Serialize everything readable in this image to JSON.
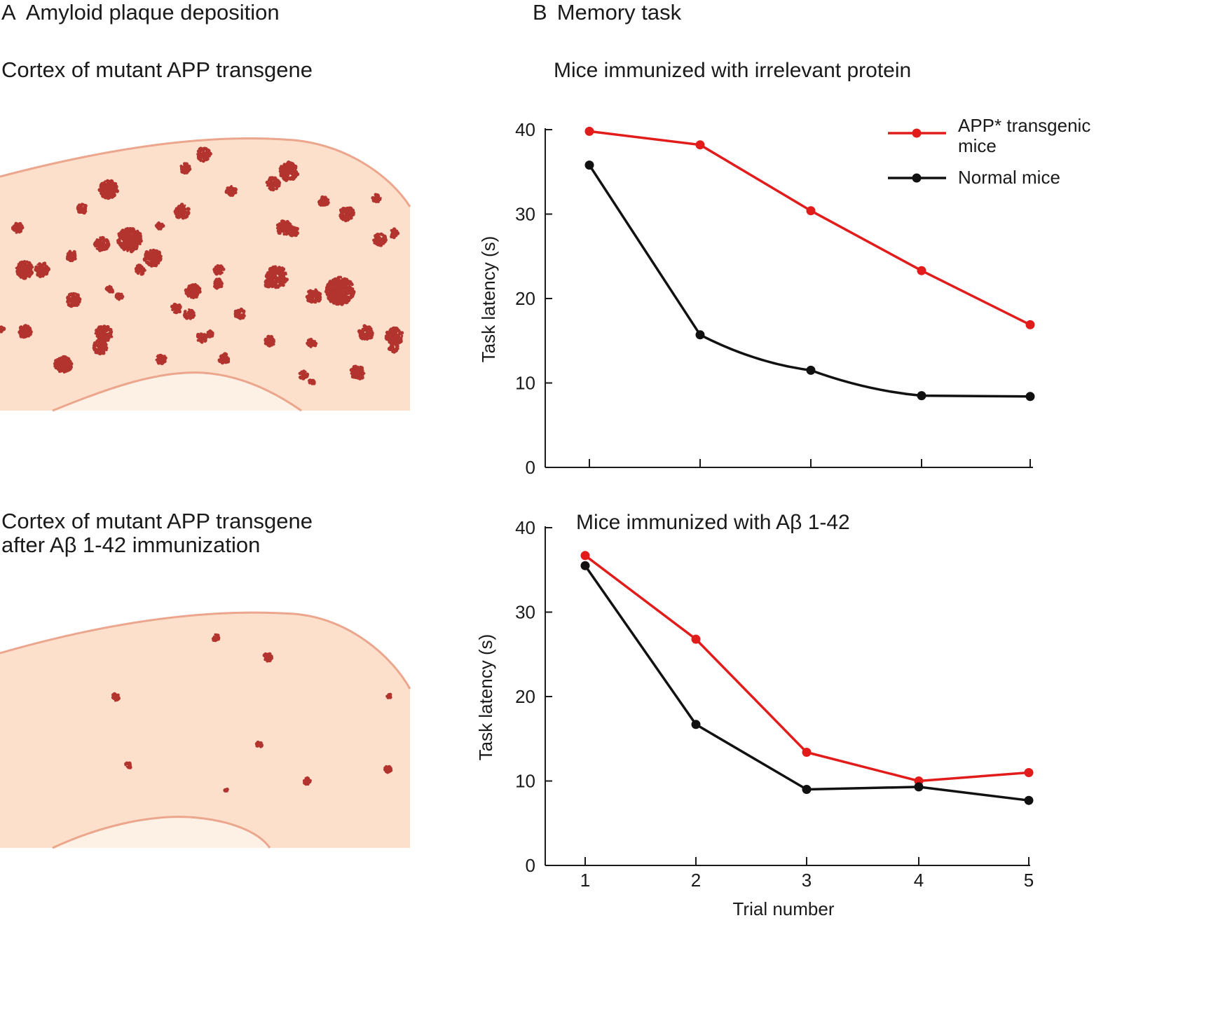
{
  "panelA": {
    "letter": "A",
    "title": "Amyloid plaque deposition",
    "top_caption": "Cortex of mutant APP transgene",
    "bottom_caption_line1": "Cortex of mutant APP transgene",
    "bottom_caption_line2": "after Aβ 1-42 immunization",
    "colors": {
      "tissue": "#fde0cc",
      "tissue_border": "#eba68d",
      "inner": "#fdf0e4",
      "plaque": "#b3342e"
    }
  },
  "panelB": {
    "letter": "B",
    "title": "Memory task"
  },
  "legend": {
    "app_line1": "APP* transgenic",
    "app_line2": "mice",
    "normal": "Normal mice"
  },
  "chart_data": [
    {
      "type": "line",
      "title": "Mice immunized with irrelevant protein",
      "xlabel": "",
      "ylabel": "Task latency (s)",
      "x": [
        1,
        2,
        3,
        4,
        5
      ],
      "ylim": [
        0,
        40
      ],
      "yticks": [
        0,
        10,
        20,
        30,
        40
      ],
      "series": [
        {
          "name": "APP* transgenic mice",
          "color": "#e21b1b",
          "values": [
            39.8,
            38.2,
            30.4,
            23.3,
            16.9
          ]
        },
        {
          "name": "Normal mice",
          "color": "#111111",
          "values": [
            35.8,
            15.7,
            11.5,
            8.5,
            8.4
          ]
        }
      ]
    },
    {
      "type": "line",
      "title": "Mice immunized with Aβ 1-42",
      "xlabel": "Trial number",
      "ylabel": "Task latency (s)",
      "x": [
        1,
        2,
        3,
        4,
        5
      ],
      "xticks": [
        "1",
        "2",
        "3",
        "4",
        "5"
      ],
      "ylim": [
        0,
        40
      ],
      "yticks": [
        0,
        10,
        20,
        30,
        40
      ],
      "series": [
        {
          "name": "APP* transgenic mice",
          "color": "#e21b1b",
          "values": [
            36.7,
            26.8,
            13.4,
            10.0,
            11.0
          ]
        },
        {
          "name": "Normal mice",
          "color": "#111111",
          "values": [
            35.5,
            16.7,
            9.0,
            9.3,
            7.7
          ]
        }
      ]
    }
  ]
}
